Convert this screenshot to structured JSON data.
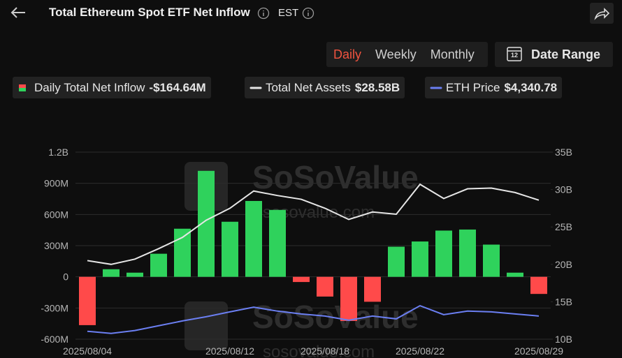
{
  "header": {
    "title": "Total Ethereum Spot ETF Net Inflow",
    "timezone": "EST"
  },
  "tabs": [
    "Daily",
    "Weekly",
    "Monthly"
  ],
  "date_range_button": "Date Range",
  "date_range_icon": "12",
  "legend_values": [
    "-$164.64M",
    "$28.58B",
    "$4,340.78"
  ],
  "watermark": [
    "SoSoValue",
    "sosovalue.com"
  ],
  "chart_data": {
    "type": "bar",
    "categories": [
      "2025/08/04",
      null,
      null,
      null,
      null,
      null,
      "2025/08/12",
      null,
      null,
      null,
      "2025/08/18",
      null,
      null,
      null,
      "2025/08/22",
      null,
      null,
      null,
      null,
      "2025/08/29"
    ],
    "series": [
      {
        "name": "Daily Total Net Inflow",
        "type": "bar",
        "positive_color": "#2fd25c",
        "negative_color": "#ff4a4a",
        "values": [
          -465,
          73,
          40,
          222,
          463,
          1020,
          530,
          730,
          644,
          -50,
          -190,
          -425,
          -240,
          290,
          340,
          445,
          455,
          310,
          40,
          -164.64
        ]
      },
      {
        "name": "Total Net Assets",
        "type": "line",
        "axis": "y2",
        "color": "#e6e6e6",
        "values": [
          20.5,
          20.0,
          20.7,
          22.1,
          23.6,
          25.9,
          27.5,
          29.8,
          29.2,
          28.7,
          27.5,
          26.0,
          27.0,
          26.7,
          30.7,
          28.8,
          30.1,
          30.2,
          29.6,
          28.58
        ]
      },
      {
        "name": "ETH Price",
        "type": "line",
        "axis": "y3",
        "color": "#6b7ff2",
        "values": [
          3720,
          3635,
          3750,
          3945,
          4140,
          4310,
          4510,
          4700,
          4540,
          4425,
          4340,
          4170,
          4340,
          4225,
          4760,
          4395,
          4540,
          4510,
          4425,
          4340.78
        ]
      }
    ],
    "ylim": [
      -600,
      1200
    ],
    "yticks": [
      {
        "value": -600,
        "label": "-600M"
      },
      {
        "value": -300,
        "label": "-300M"
      },
      0,
      {
        "value": 300,
        "label": "300M"
      },
      {
        "value": 600,
        "label": "600M"
      },
      {
        "value": 900,
        "label": "900M"
      },
      {
        "value": 1200,
        "label": "1.2B"
      }
    ],
    "y2lim": [
      10,
      35
    ],
    "y2ticks": [
      {
        "value": 10,
        "label": "10B"
      },
      {
        "value": 15,
        "label": "15B"
      },
      {
        "value": 20,
        "label": "20B"
      },
      {
        "value": 25,
        "label": "25B"
      },
      {
        "value": 30,
        "label": "30B"
      },
      {
        "value": 35,
        "label": "35B"
      }
    ],
    "y3lim": [
      3400,
      11000
    ],
    "grid": true
  }
}
